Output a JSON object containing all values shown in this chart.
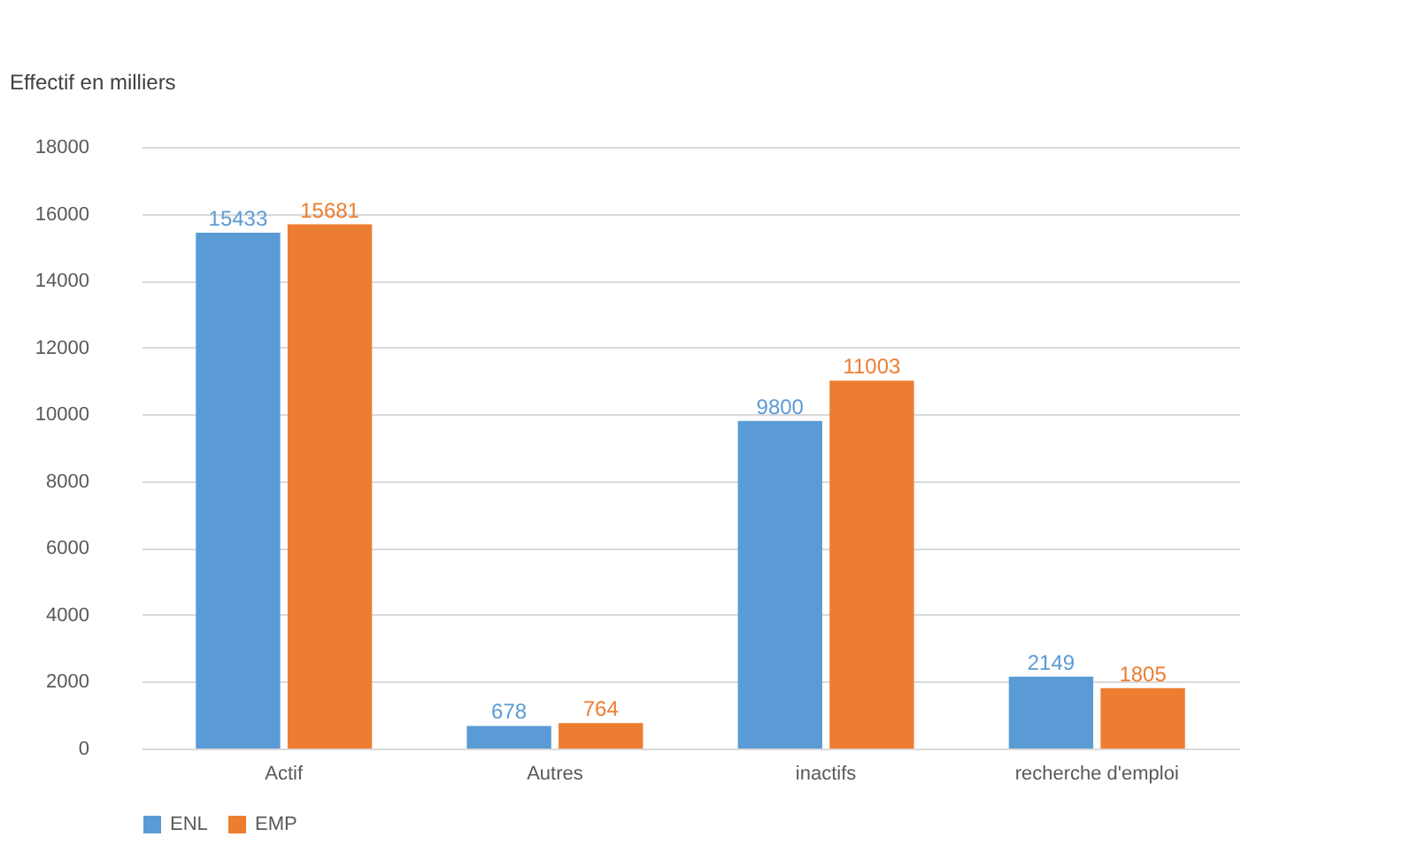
{
  "chart_data": {
    "type": "bar",
    "ylabel": "Effectif en milliers",
    "categories": [
      "Actif",
      "Autres",
      "inactifs",
      "recherche d'emploi"
    ],
    "series": [
      {
        "name": "ENL",
        "color": "#5b9bd5",
        "values": [
          15433,
          678,
          9800,
          2149
        ]
      },
      {
        "name": "EMP",
        "color": "#ed7d31",
        "values": [
          15681,
          764,
          11003,
          1805
        ]
      }
    ],
    "ylim": [
      0,
      18000
    ],
    "yticks": [
      0,
      2000,
      4000,
      6000,
      8000,
      10000,
      12000,
      14000,
      16000,
      18000
    ],
    "grid": "y",
    "legend": "bottom",
    "data_labels": true
  }
}
